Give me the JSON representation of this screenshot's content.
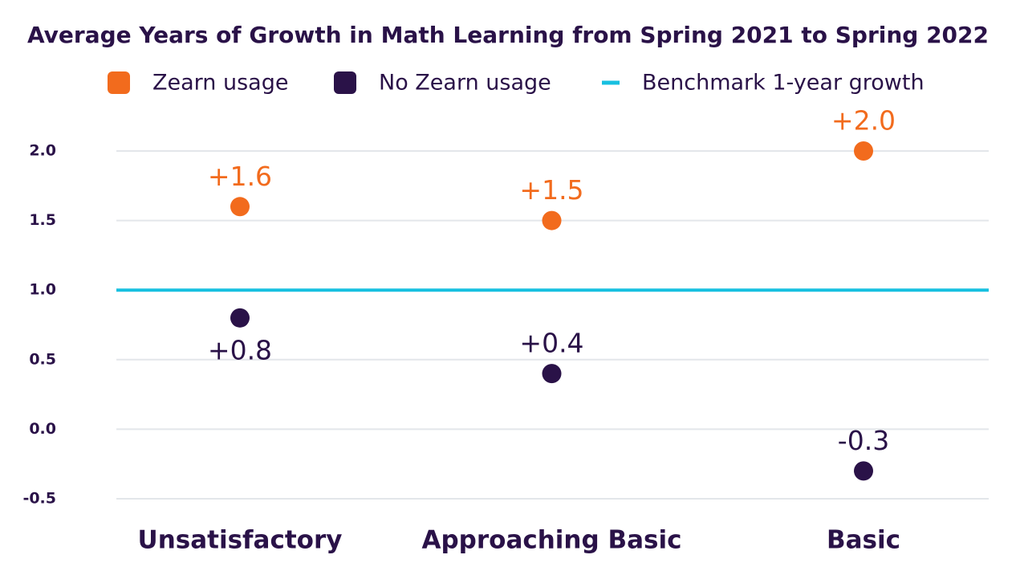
{
  "chart_data": {
    "type": "dot",
    "title": "Average Years of Growth in Math Learning from Spring 2021 to Spring 2022",
    "categories": [
      "Unsatisfactory",
      "Approaching Basic",
      "Basic"
    ],
    "series": [
      {
        "name": "Zearn usage",
        "color": "#f26b1d",
        "values": [
          1.6,
          1.5,
          2.0
        ],
        "value_labels": [
          "+1.6",
          "+1.5",
          "+2.0"
        ]
      },
      {
        "name": "No Zearn usage",
        "color": "#2a1248",
        "values": [
          0.8,
          0.4,
          -0.3
        ],
        "value_labels": [
          "+0.8",
          "+0.4",
          "-0.3"
        ]
      }
    ],
    "reference_line": {
      "name": "Benchmark 1-year growth",
      "value": 1,
      "color": "#17c0e0"
    },
    "ylim": [
      -0.5,
      2.0
    ],
    "yticks": [
      {
        "value": 2,
        "label": "2.0"
      },
      1.5,
      {
        "value": 1,
        "label": "1.0"
      },
      0.5,
      {
        "value": 0,
        "label": "0.0"
      },
      -0.5
    ],
    "grid": true
  }
}
